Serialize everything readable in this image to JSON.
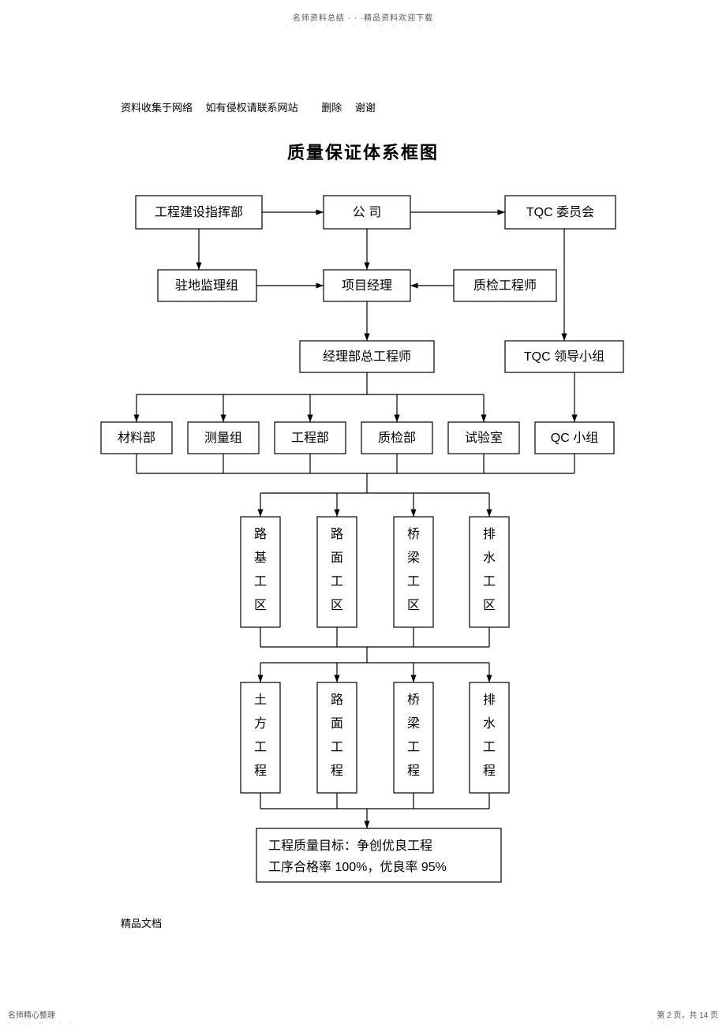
{
  "type": "flowchart",
  "background_color": "#ffffff",
  "stroke_color": "#000000",
  "stroke_width": 1.2,
  "header_small": "名师资料总结 · · ·精品资料欢迎下载",
  "source_line": "资料收集于网络　 如有侵权请联系网站　　 删除　 谢谢",
  "title": "质量保证体系框图",
  "footer_doc": "精品文档",
  "footer_left": "名师精心整理",
  "footer_right": "第 2 页，共 14 页",
  "nodes": {
    "n_hq": {
      "label": "工程建设指挥部"
    },
    "n_company": {
      "label": "公   司"
    },
    "n_tqc_com": {
      "label": "TQC  委员会"
    },
    "n_supervise": {
      "label": "驻地监理组"
    },
    "n_pm": {
      "label": "项目经理"
    },
    "n_qeng": {
      "label": "质检工程师"
    },
    "n_chief": {
      "label": "经理部总工程师"
    },
    "n_tqc_lead": {
      "label": "TQC  领导小组"
    },
    "n_material": {
      "label": "材料部"
    },
    "n_survey": {
      "label": "测量组"
    },
    "n_engdept": {
      "label": "工程部"
    },
    "n_qcdept": {
      "label": "质检部"
    },
    "n_lab": {
      "label": "试验室"
    },
    "n_qcgroup": {
      "label": "QC 小组"
    },
    "n_zone1": {
      "label": "路基工区"
    },
    "n_zone2": {
      "label": "路面工区"
    },
    "n_zone3": {
      "label": "桥梁工区"
    },
    "n_zone4": {
      "label": "排水工区"
    },
    "n_proj1": {
      "label": "土方工程"
    },
    "n_proj2": {
      "label": "路面工程"
    },
    "n_proj3": {
      "label": "桥梁工程"
    },
    "n_proj4": {
      "label": "排水工程"
    }
  },
  "goal": {
    "line1": "工程质量目标：争创优良工程",
    "line2": "工序合格率  100%，优良率  95%"
  }
}
